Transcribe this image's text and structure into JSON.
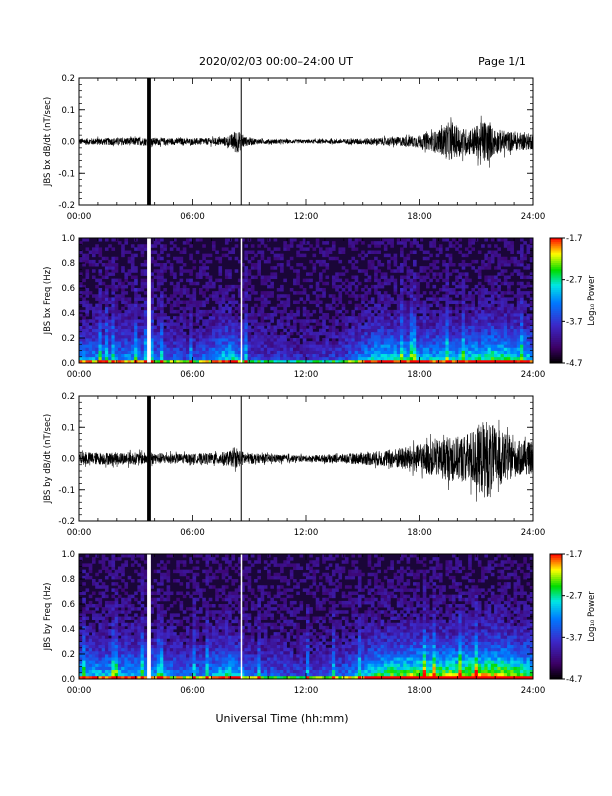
{
  "header": {
    "title": "2020/02/03  00:00–24:00 UT",
    "page_label": "Page 1/1"
  },
  "footer": {
    "xlabel": "Universal Time (hh:mm)"
  },
  "colors": {
    "line": "#000000",
    "background": "#ffffff"
  },
  "chart_data": [
    {
      "type": "line",
      "ylabel": "JBS bx dB/dt (nT/sec)",
      "xlim": [
        0,
        24
      ],
      "ylim": [
        -0.2,
        0.2
      ],
      "x_ticks": [
        "00:00",
        "06:00",
        "12:00",
        "18:00",
        "24:00"
      ],
      "y_ticks": [
        "-0.2",
        "-0.1",
        "0.0",
        "0.1",
        "0.2"
      ],
      "data_gaps_hours": [
        [
          3.6,
          3.8
        ],
        [
          8.55,
          8.6
        ]
      ],
      "envelope": {
        "x": [
          0,
          2,
          3.5,
          4,
          6,
          7.5,
          8,
          8.3,
          8.8,
          9.5,
          12,
          14,
          16,
          17,
          18,
          19,
          19.5,
          20,
          20.5,
          21,
          21.5,
          22,
          23,
          24
        ],
        "amplitude": [
          0.01,
          0.012,
          0.013,
          0.012,
          0.01,
          0.012,
          0.02,
          0.04,
          0.015,
          0.008,
          0.006,
          0.008,
          0.012,
          0.015,
          0.02,
          0.035,
          0.06,
          0.05,
          0.04,
          0.05,
          0.07,
          0.04,
          0.03,
          0.025
        ]
      }
    },
    {
      "type": "heatmap",
      "ylabel": "JBS bx Freq (Hz)",
      "xlim": [
        0,
        24
      ],
      "ylim": [
        0,
        1.0
      ],
      "x_ticks": [
        "00:00",
        "06:00",
        "12:00",
        "18:00",
        "24:00"
      ],
      "y_ticks": [
        "0.0",
        "0.2",
        "0.4",
        "0.6",
        "0.8",
        "1.0"
      ],
      "data_gaps_hours": [
        [
          3.6,
          3.8
        ],
        [
          8.55,
          8.6
        ]
      ],
      "colorbar": {
        "label": "Log₁₀ Power",
        "range": [
          -4.7,
          -1.7
        ],
        "ticks": [
          "-1.7",
          "-2.7",
          "-3.7",
          "-4.7"
        ]
      },
      "activity": {
        "x": [
          0,
          3,
          6,
          8,
          9,
          12,
          14,
          16,
          18,
          20,
          22,
          24
        ],
        "level": [
          0.25,
          0.25,
          0.15,
          0.35,
          0.15,
          0.1,
          0.15,
          0.35,
          0.3,
          0.3,
          0.4,
          0.3
        ]
      }
    },
    {
      "type": "line",
      "ylabel": "JBS by dB/dt (nT/sec)",
      "xlim": [
        0,
        24
      ],
      "ylim": [
        -0.2,
        0.2
      ],
      "x_ticks": [
        "00:00",
        "06:00",
        "12:00",
        "18:00",
        "24:00"
      ],
      "y_ticks": [
        "-0.2",
        "-0.1",
        "0.0",
        "0.1",
        "0.2"
      ],
      "data_gaps_hours": [
        [
          3.6,
          3.8
        ],
        [
          8.55,
          8.6
        ]
      ],
      "envelope": {
        "x": [
          0,
          2,
          3.5,
          4,
          6,
          7.5,
          8,
          8.3,
          8.8,
          9.5,
          12,
          14,
          16,
          17,
          18,
          19,
          19.5,
          20,
          20.5,
          21,
          21.5,
          22,
          22.5,
          23,
          24
        ],
        "amplitude": [
          0.02,
          0.02,
          0.02,
          0.018,
          0.015,
          0.02,
          0.025,
          0.03,
          0.02,
          0.015,
          0.01,
          0.015,
          0.025,
          0.035,
          0.045,
          0.06,
          0.07,
          0.07,
          0.08,
          0.1,
          0.13,
          0.1,
          0.08,
          0.06,
          0.05
        ]
      }
    },
    {
      "type": "heatmap",
      "ylabel": "JBS by Freq (Hz)",
      "xlim": [
        0,
        24
      ],
      "ylim": [
        0,
        1.0
      ],
      "x_ticks": [
        "00:00",
        "06:00",
        "12:00",
        "18:00",
        "24:00"
      ],
      "y_ticks": [
        "0.0",
        "0.2",
        "0.4",
        "0.6",
        "0.8",
        "1.0"
      ],
      "data_gaps_hours": [
        [
          3.6,
          3.8
        ],
        [
          8.55,
          8.6
        ]
      ],
      "colorbar": {
        "label": "Log₁₀ Power",
        "range": [
          -4.7,
          -1.7
        ],
        "ticks": [
          "-1.7",
          "-2.7",
          "-3.7",
          "-4.7"
        ]
      },
      "activity": {
        "x": [
          0,
          3,
          6,
          8,
          9,
          12,
          14,
          16,
          18,
          20,
          22,
          24
        ],
        "level": [
          0.3,
          0.3,
          0.2,
          0.35,
          0.2,
          0.15,
          0.2,
          0.4,
          0.45,
          0.45,
          0.5,
          0.4
        ]
      }
    }
  ]
}
